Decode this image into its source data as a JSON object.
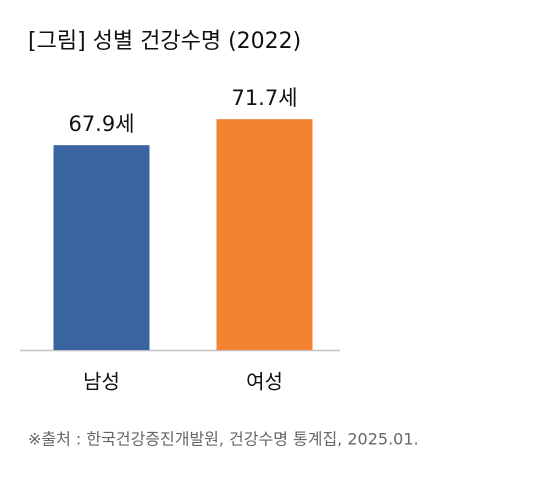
{
  "chart_data": {
    "type": "bar",
    "title": "[그림] 성별 건강수명 (2022)",
    "categories": [
      "남성",
      "여성"
    ],
    "values": [
      67.9,
      71.7
    ],
    "value_labels": [
      "67.9세",
      "71.7세"
    ],
    "colors": [
      "#3a64a0",
      "#f5822f"
    ],
    "ylim": [
      38,
      74.5
    ],
    "source": "※출처 : 한국건강증진개발원, 건강수명 통계집, 2025.01."
  }
}
